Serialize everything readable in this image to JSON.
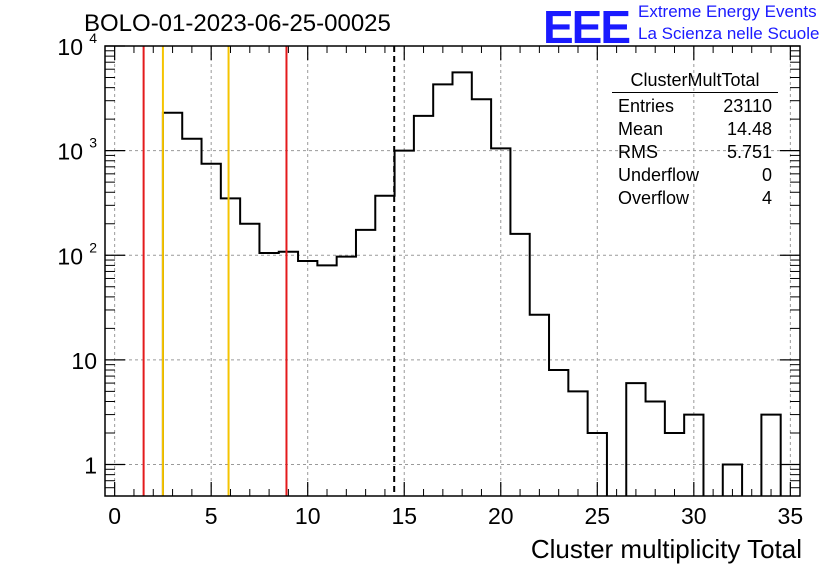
{
  "header": {
    "title": "BOLO-01-2023-06-25-00025",
    "logo_text": "EEE",
    "logo_line1": "Extreme Energy Events",
    "logo_line2": "La Scienza nelle Scuole"
  },
  "stats_box": {
    "name": "ClusterMultTotal",
    "rows": [
      {
        "label": "Entries",
        "value": "23110"
      },
      {
        "label": "Mean",
        "value": "14.48"
      },
      {
        "label": "RMS",
        "value": "5.751"
      },
      {
        "label": "Underflow",
        "value": "0"
      },
      {
        "label": "Overflow",
        "value": "4"
      }
    ]
  },
  "colors": {
    "histogram": "#000000",
    "red_lines": "#e41a1c",
    "yellow_lines": "#f5c400",
    "mean_line": "#000000",
    "logo": "#1a1aff"
  },
  "chart_data": {
    "type": "bar",
    "histogram_style": "step",
    "title": "BOLO-01-2023-06-25-00025",
    "xlabel": "Cluster multiplicity Total",
    "ylabel": "",
    "xlim": [
      -0.5,
      35.5
    ],
    "ylim": [
      0.5,
      10000
    ],
    "yscale": "log",
    "grid": true,
    "x_ticks": [
      0,
      5,
      10,
      15,
      20,
      25,
      30,
      35
    ],
    "y_ticks": [
      {
        "value": 1,
        "label": "1"
      },
      {
        "value": 10,
        "label": "10"
      },
      {
        "value": 100,
        "label": "10",
        "exp": "2"
      },
      {
        "value": 1000,
        "label": "10",
        "exp": "3"
      },
      {
        "value": 10000,
        "label": "10",
        "exp": "4"
      }
    ],
    "bin_edges_start": 2.5,
    "bin_width": 1,
    "values": [
      2300,
      1300,
      750,
      350,
      200,
      105,
      108,
      88,
      80,
      97,
      175,
      370,
      1000,
      2150,
      4300,
      5600,
      3100,
      1050,
      160,
      27,
      8,
      5,
      2,
      0,
      6,
      4,
      2,
      3,
      0,
      1,
      0,
      3
    ],
    "vertical_lines": [
      {
        "x": 1.5,
        "color": "red",
        "style": "solid"
      },
      {
        "x": 2.5,
        "color": "yellow",
        "style": "solid"
      },
      {
        "x": 5.9,
        "color": "yellow",
        "style": "solid"
      },
      {
        "x": 8.9,
        "color": "red",
        "style": "solid"
      },
      {
        "x": 14.48,
        "color": "black",
        "style": "dashed"
      }
    ]
  }
}
